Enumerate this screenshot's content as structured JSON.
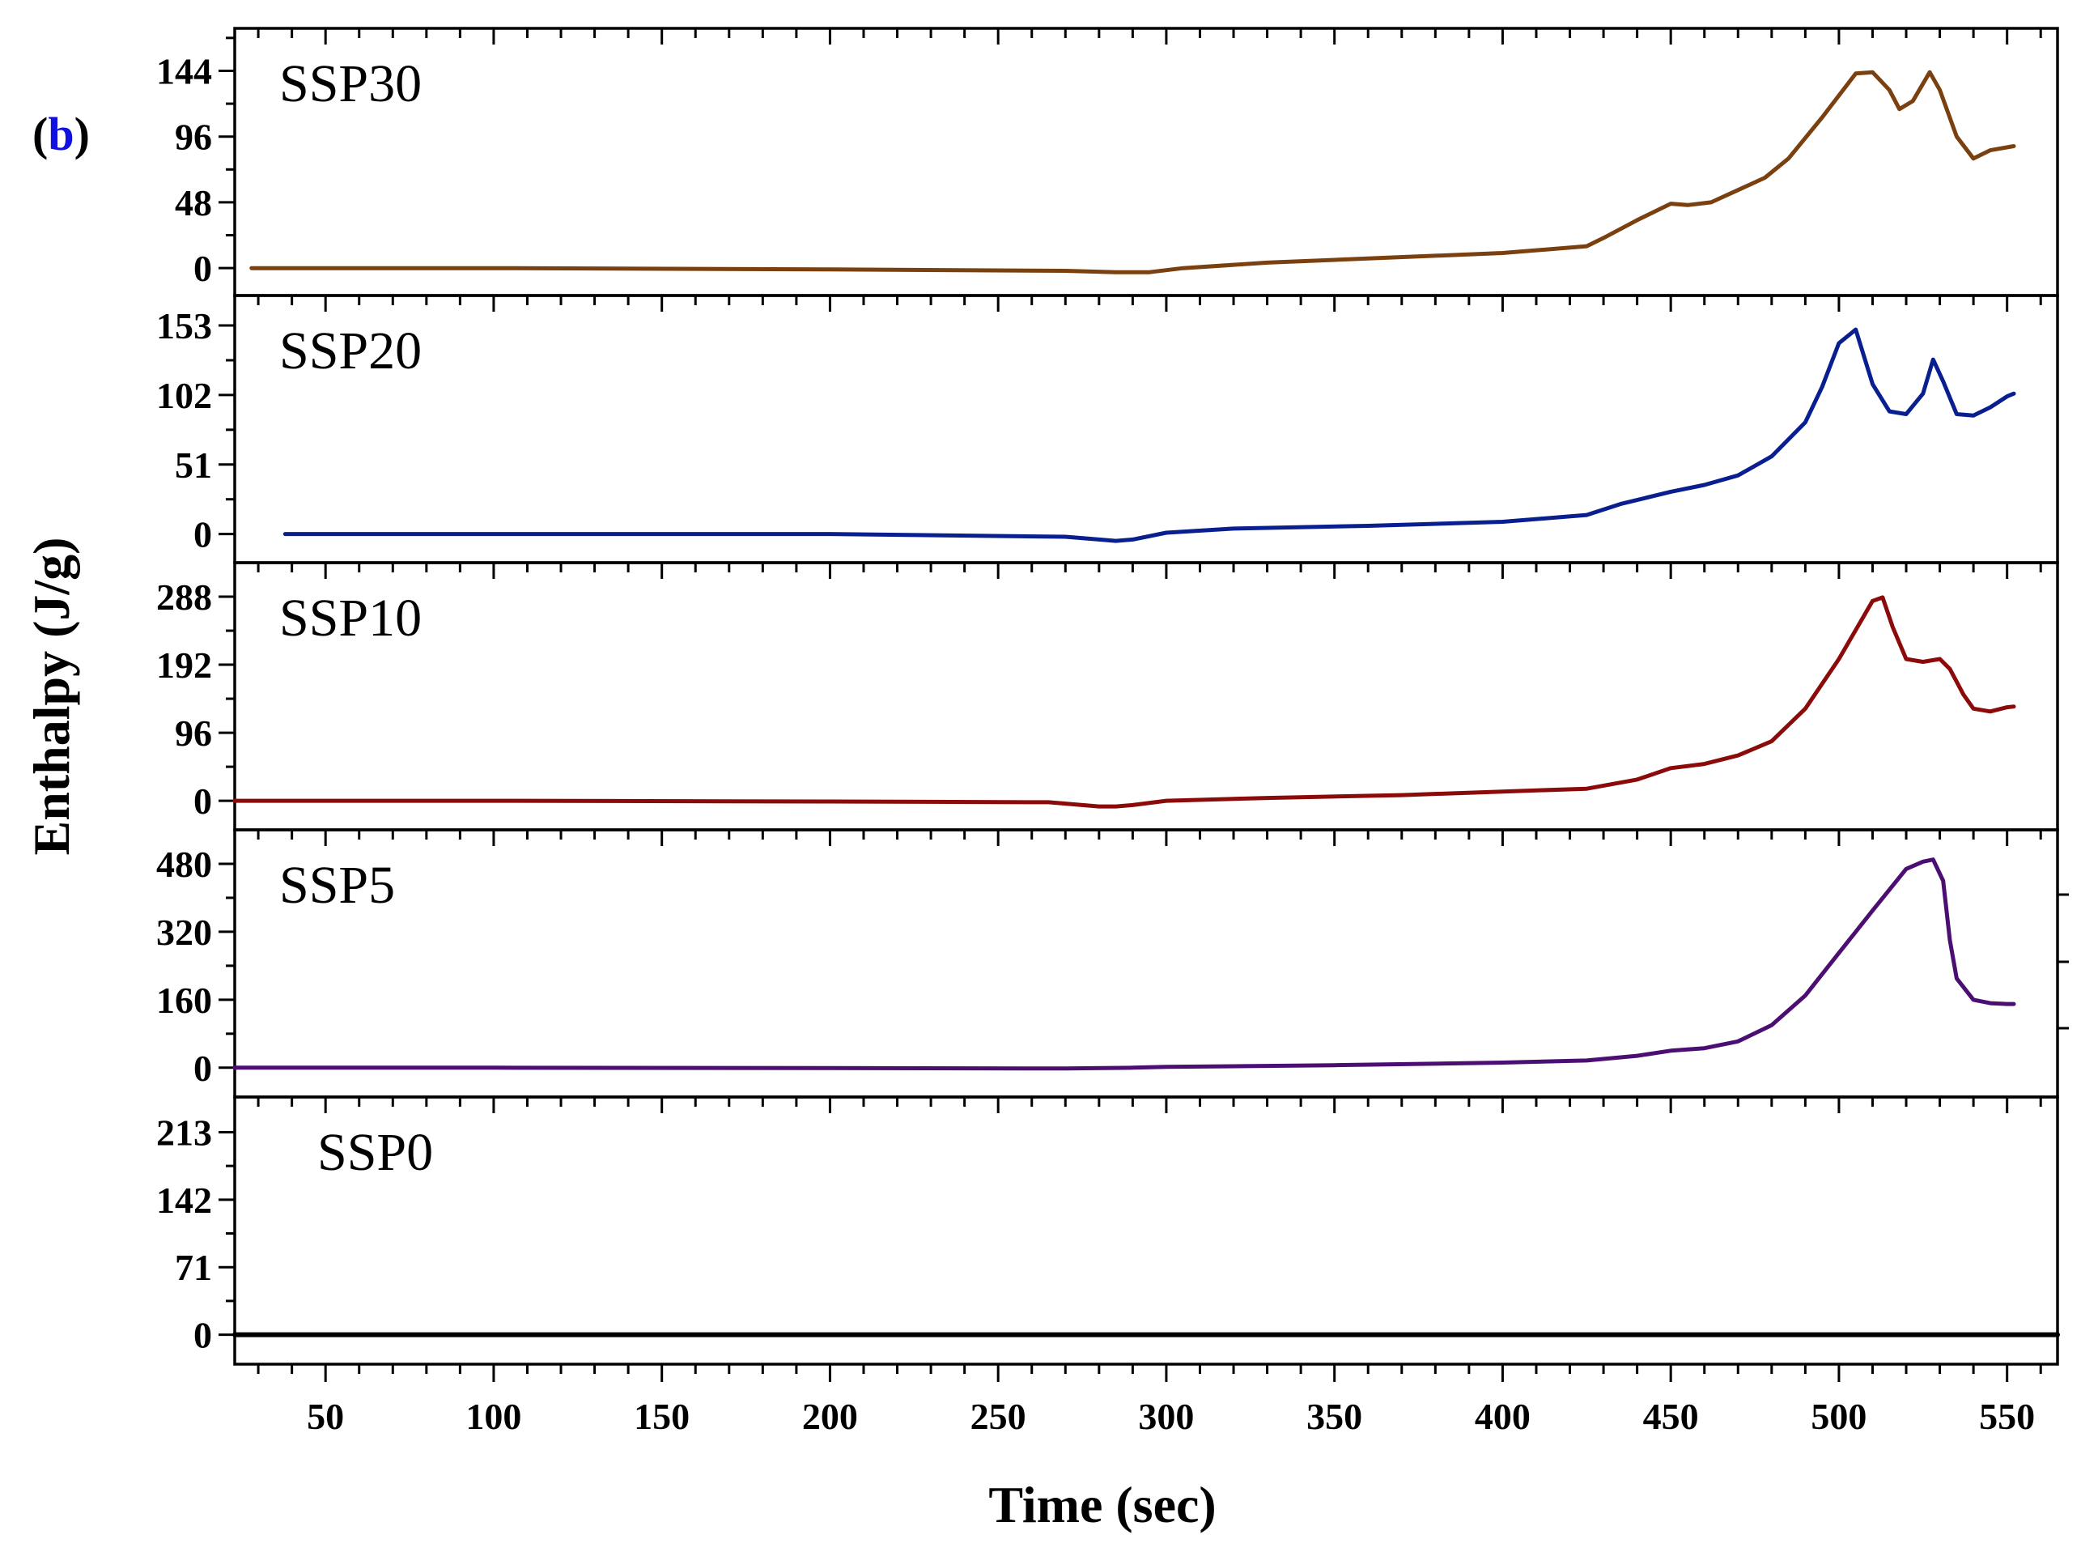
{
  "figure_label": {
    "open": "(",
    "letter": "b",
    "close": ")",
    "letter_color": "#1010e0"
  },
  "chart_data": {
    "type": "line",
    "xlabel": "Time (sec)",
    "ylabel": "Enthalpy (J/g)",
    "xlim": [
      23,
      565
    ],
    "x_ticks": [
      50,
      100,
      150,
      200,
      250,
      300,
      350,
      400,
      450,
      500,
      550
    ],
    "x_tick_labels": [
      "50",
      "100",
      "150",
      "200",
      "250",
      "300",
      "350",
      "400",
      "450",
      "500",
      "550"
    ],
    "panels": [
      {
        "name": "SSP30",
        "color": "#7a4010",
        "ylim": [
          -20,
          175
        ],
        "y_ticks": [
          0,
          48,
          96,
          144
        ],
        "y_tick_labels": [
          "0",
          "48",
          "96",
          "144"
        ],
        "x": [
          28,
          100,
          200,
          270,
          285,
          295,
          305,
          330,
          360,
          400,
          425,
          430,
          440,
          450,
          455,
          462,
          470,
          478,
          485,
          495,
          505,
          510,
          515,
          518,
          522,
          527,
          530,
          535,
          540,
          545,
          552
        ],
        "y": [
          0,
          0,
          -1,
          -2,
          -3,
          -3,
          0,
          4,
          7,
          11,
          16,
          22,
          35,
          47,
          46,
          48,
          57,
          66,
          80,
          110,
          142,
          143,
          130,
          116,
          122,
          143,
          130,
          96,
          80,
          86,
          89
        ]
      },
      {
        "name": "SSP20",
        "color": "#0a1f8f",
        "ylim": [
          -21,
          175
        ],
        "y_ticks": [
          0,
          51,
          102,
          153
        ],
        "y_tick_labels": [
          "0",
          "51",
          "102",
          "153"
        ],
        "x": [
          38,
          100,
          200,
          270,
          280,
          285,
          290,
          300,
          320,
          360,
          400,
          425,
          435,
          450,
          460,
          470,
          480,
          490,
          495,
          500,
          505,
          510,
          515,
          520,
          525,
          528,
          531,
          535,
          540,
          545,
          550,
          552
        ],
        "y": [
          0,
          0,
          0,
          -2,
          -4,
          -5,
          -4,
          1,
          4,
          6,
          9,
          14,
          22,
          31,
          36,
          43,
          57,
          82,
          108,
          140,
          150,
          110,
          90,
          88,
          103,
          128,
          112,
          88,
          87,
          93,
          101,
          103
        ]
      },
      {
        "name": "SSP10",
        "color": "#8b0a0a",
        "ylim": [
          -41,
          336
        ],
        "y_ticks": [
          0,
          96,
          192,
          288
        ],
        "y_tick_labels": [
          "0",
          "96",
          "192",
          "288"
        ],
        "x": [
          23,
          100,
          200,
          265,
          280,
          285,
          290,
          300,
          330,
          370,
          400,
          425,
          440,
          450,
          460,
          470,
          480,
          490,
          500,
          510,
          513,
          516,
          520,
          525,
          530,
          533,
          537,
          540,
          545,
          550,
          552
        ],
        "y": [
          0,
          0,
          -1,
          -2,
          -8,
          -8,
          -6,
          0,
          4,
          8,
          13,
          17,
          30,
          46,
          52,
          64,
          84,
          130,
          200,
          282,
          287,
          245,
          200,
          196,
          200,
          186,
          150,
          130,
          126,
          132,
          133
        ]
      },
      {
        "name": "SSP5",
        "color": "#4b0e72",
        "ylim": [
          -69,
          560
        ],
        "y_ticks": [
          0,
          160,
          320,
          480
        ],
        "y_tick_labels": [
          "0",
          "160",
          "320",
          "480"
        ],
        "x": [
          23,
          100,
          200,
          270,
          290,
          300,
          350,
          400,
          425,
          440,
          450,
          460,
          470,
          480,
          490,
          500,
          510,
          520,
          525,
          528,
          531,
          533,
          535,
          540,
          545,
          550,
          552
        ],
        "y": [
          0,
          0,
          -1,
          -2,
          0,
          2,
          6,
          12,
          17,
          28,
          40,
          46,
          62,
          100,
          170,
          270,
          370,
          468,
          485,
          490,
          440,
          300,
          210,
          160,
          152,
          150,
          150
        ]
      },
      {
        "name": "SSP0",
        "color": "#000000",
        "ylim": [
          -31,
          250
        ],
        "y_ticks": [
          0,
          71,
          142,
          213
        ],
        "y_tick_labels": [
          "0",
          "71",
          "142",
          "213"
        ],
        "x": [
          23,
          565
        ],
        "y": [
          0,
          0
        ]
      }
    ]
  }
}
